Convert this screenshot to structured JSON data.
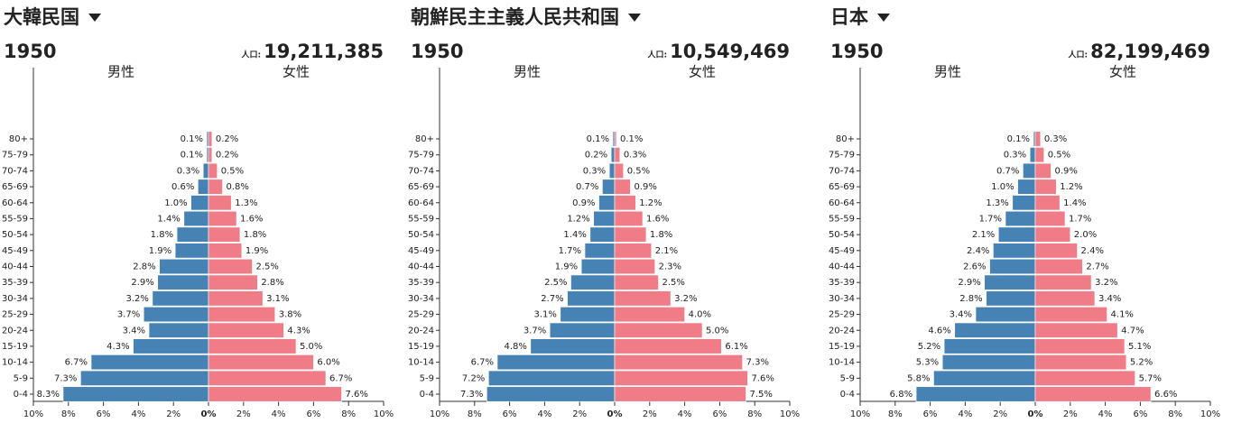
{
  "chart_data": [
    {
      "type": "pyramid",
      "title": "大韓民国",
      "year": "1950",
      "population_label": "人口:",
      "population": "19,211,385",
      "categories": [
        "80+",
        "75-79",
        "70-74",
        "65-69",
        "60-64",
        "55-59",
        "50-54",
        "45-49",
        "40-44",
        "35-39",
        "30-34",
        "25-29",
        "20-24",
        "15-19",
        "10-14",
        "5-9",
        "0-4"
      ],
      "series": [
        {
          "name": "男性",
          "color": "#4682b4",
          "values": [
            0.1,
            0.1,
            0.3,
            0.6,
            1.0,
            1.4,
            1.8,
            1.9,
            2.8,
            2.9,
            3.2,
            3.7,
            3.4,
            4.3,
            6.7,
            7.3,
            8.3
          ],
          "value_labels": [
            "0.1%",
            "0.1%",
            "0.3%",
            "0.6%",
            "1.0%",
            "1.4%",
            "1.8%",
            "1.9%",
            "2.8%",
            "2.9%",
            "3.2%",
            "3.7%",
            "3.4%",
            "4.3%",
            "6.7%",
            "7.3%",
            "8.3%"
          ]
        },
        {
          "name": "女性",
          "color": "#f07c88",
          "values": [
            0.2,
            0.2,
            0.5,
            0.8,
            1.3,
            1.6,
            1.8,
            1.9,
            2.5,
            2.8,
            3.1,
            3.8,
            4.3,
            5.0,
            6.0,
            6.7,
            7.6
          ],
          "value_labels": [
            "0.2%",
            "0.2%",
            "0.5%",
            "0.8%",
            "1.3%",
            "1.6%",
            "1.8%",
            "1.9%",
            "2.5%",
            "2.8%",
            "3.1%",
            "3.8%",
            "4.3%",
            "5.0%",
            "6.0%",
            "6.7%",
            "7.6%"
          ]
        }
      ],
      "xlim": [
        -10,
        10
      ],
      "xticks": [
        {
          "value": -10,
          "label": "10%"
        },
        {
          "value": -8,
          "label": "8%"
        },
        {
          "value": -6,
          "label": "6%"
        },
        {
          "value": -4,
          "label": "4%"
        },
        {
          "value": -2,
          "label": "2%"
        },
        {
          "value": 0,
          "label": "0%"
        },
        {
          "value": 2,
          "label": "2%"
        },
        {
          "value": 4,
          "label": "4%"
        },
        {
          "value": 6,
          "label": "6%"
        },
        {
          "value": 8,
          "label": "8%"
        },
        {
          "value": 10,
          "label": "10%"
        }
      ]
    },
    {
      "type": "pyramid",
      "title": "朝鮮民主主義人民共和国",
      "year": "1950",
      "population_label": "人口:",
      "population": "10,549,469",
      "categories": [
        "80+",
        "75-79",
        "70-74",
        "65-69",
        "60-64",
        "55-59",
        "50-54",
        "45-49",
        "40-44",
        "35-39",
        "30-34",
        "25-29",
        "20-24",
        "15-19",
        "10-14",
        "5-9",
        "0-4"
      ],
      "series": [
        {
          "name": "男性",
          "color": "#4682b4",
          "values": [
            0.1,
            0.2,
            0.3,
            0.7,
            0.9,
            1.2,
            1.4,
            1.7,
            1.9,
            2.5,
            2.7,
            3.1,
            3.7,
            4.8,
            6.7,
            7.2,
            7.3
          ],
          "value_labels": [
            "0.1%",
            "0.2%",
            "0.3%",
            "0.7%",
            "0.9%",
            "1.2%",
            "1.4%",
            "1.7%",
            "1.9%",
            "2.5%",
            "2.7%",
            "3.1%",
            "3.7%",
            "4.8%",
            "6.7%",
            "7.2%",
            "7.3%"
          ]
        },
        {
          "name": "女性",
          "color": "#f07c88",
          "values": [
            0.1,
            0.3,
            0.5,
            0.9,
            1.2,
            1.6,
            1.8,
            2.1,
            2.3,
            2.5,
            3.2,
            4.0,
            5.0,
            6.1,
            7.3,
            7.6,
            7.5
          ],
          "value_labels": [
            "0.1%",
            "0.3%",
            "0.5%",
            "0.9%",
            "1.2%",
            "1.6%",
            "1.8%",
            "2.1%",
            "2.3%",
            "2.5%",
            "3.2%",
            "4.0%",
            "5.0%",
            "6.1%",
            "7.3%",
            "7.6%",
            "7.5%"
          ]
        }
      ],
      "xlim": [
        -10,
        10
      ],
      "xticks": [
        {
          "value": -10,
          "label": "10%"
        },
        {
          "value": -8,
          "label": "8%"
        },
        {
          "value": -6,
          "label": "6%"
        },
        {
          "value": -4,
          "label": "4%"
        },
        {
          "value": -2,
          "label": "2%"
        },
        {
          "value": 0,
          "label": "0%"
        },
        {
          "value": 2,
          "label": "2%"
        },
        {
          "value": 4,
          "label": "4%"
        },
        {
          "value": 6,
          "label": "6%"
        },
        {
          "value": 8,
          "label": "8%"
        },
        {
          "value": 10,
          "label": "10%"
        }
      ]
    },
    {
      "type": "pyramid",
      "title": "日本",
      "year": "1950",
      "population_label": "人口:",
      "population": "82,199,469",
      "categories": [
        "80+",
        "75-79",
        "70-74",
        "65-69",
        "60-64",
        "55-59",
        "50-54",
        "45-49",
        "40-44",
        "35-39",
        "30-34",
        "25-29",
        "20-24",
        "15-19",
        "10-14",
        "5-9",
        "0-4"
      ],
      "series": [
        {
          "name": "男性",
          "color": "#4682b4",
          "values": [
            0.1,
            0.3,
            0.7,
            1.0,
            1.3,
            1.7,
            2.1,
            2.4,
            2.6,
            2.9,
            2.8,
            3.4,
            4.6,
            5.2,
            5.3,
            5.8,
            6.8
          ],
          "value_labels": [
            "0.1%",
            "0.3%",
            "0.7%",
            "1.0%",
            "1.3%",
            "1.7%",
            "2.1%",
            "2.4%",
            "2.6%",
            "2.9%",
            "2.8%",
            "3.4%",
            "4.6%",
            "5.2%",
            "5.3%",
            "5.8%",
            "6.8%"
          ]
        },
        {
          "name": "女性",
          "color": "#f07c88",
          "values": [
            0.3,
            0.5,
            0.9,
            1.2,
            1.4,
            1.7,
            2.0,
            2.4,
            2.7,
            3.2,
            3.4,
            4.1,
            4.7,
            5.1,
            5.2,
            5.7,
            6.6
          ],
          "value_labels": [
            "0.3%",
            "0.5%",
            "0.9%",
            "1.2%",
            "1.4%",
            "1.7%",
            "2.0%",
            "2.4%",
            "2.7%",
            "3.2%",
            "3.4%",
            "4.1%",
            "4.7%",
            "5.1%",
            "5.2%",
            "5.7%",
            "6.6%"
          ]
        }
      ],
      "xlim": [
        -10,
        10
      ],
      "xticks": [
        {
          "value": -10,
          "label": "10%"
        },
        {
          "value": -8,
          "label": "8%"
        },
        {
          "value": -6,
          "label": "6%"
        },
        {
          "value": -4,
          "label": "4%"
        },
        {
          "value": -2,
          "label": "2%"
        },
        {
          "value": 0,
          "label": "0%"
        },
        {
          "value": 2,
          "label": "2%"
        },
        {
          "value": 4,
          "label": "4%"
        },
        {
          "value": 6,
          "label": "6%"
        },
        {
          "value": 8,
          "label": "8%"
        },
        {
          "value": 10,
          "label": "10%"
        }
      ]
    }
  ]
}
